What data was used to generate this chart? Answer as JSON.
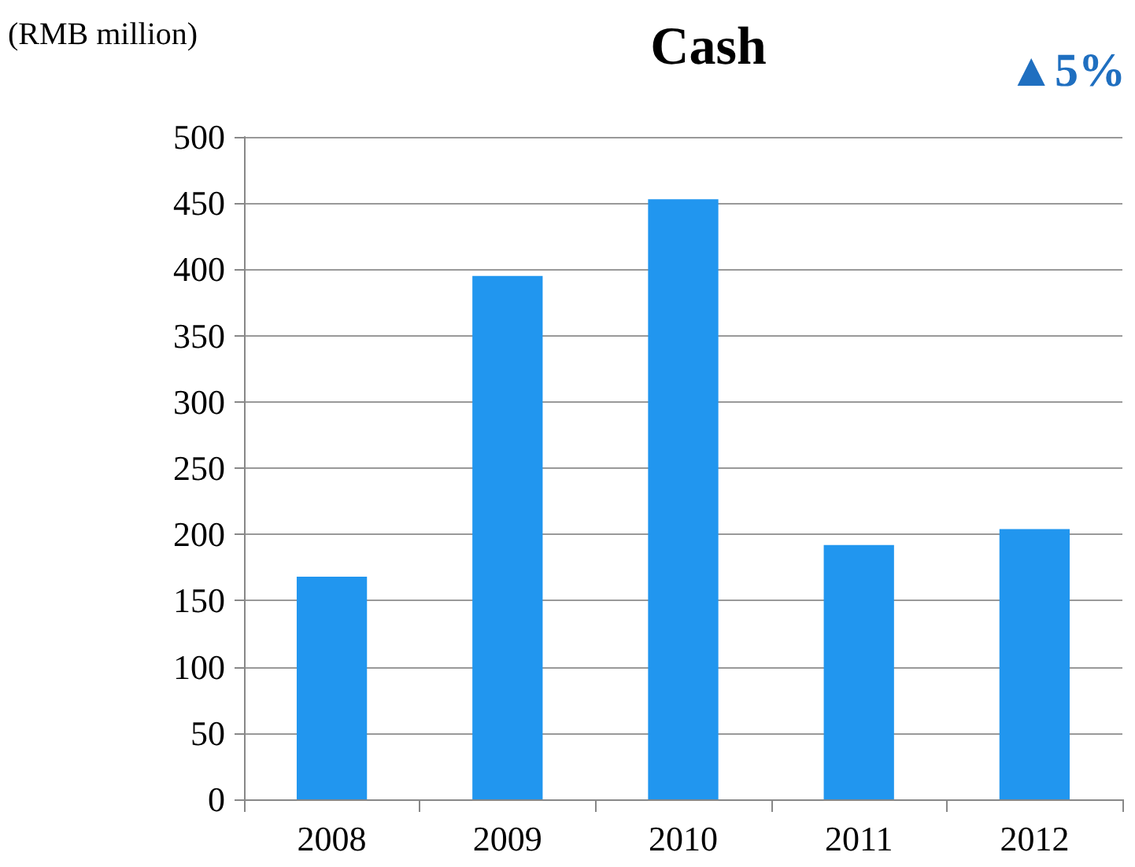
{
  "chart_data": {
    "type": "bar",
    "title": "Cash",
    "ylabel": "(RMB million)",
    "annotations": [
      "▲5%"
    ],
    "categories": [
      "2008",
      "2009",
      "2010",
      "2011",
      "2012"
    ],
    "values": [
      168,
      395,
      453,
      192,
      204
    ],
    "color": "#2196ef",
    "ylim": [
      0,
      500
    ],
    "yticks": [
      0,
      50,
      100,
      150,
      200,
      250,
      300,
      350,
      400,
      450,
      500
    ],
    "grid": "y"
  }
}
